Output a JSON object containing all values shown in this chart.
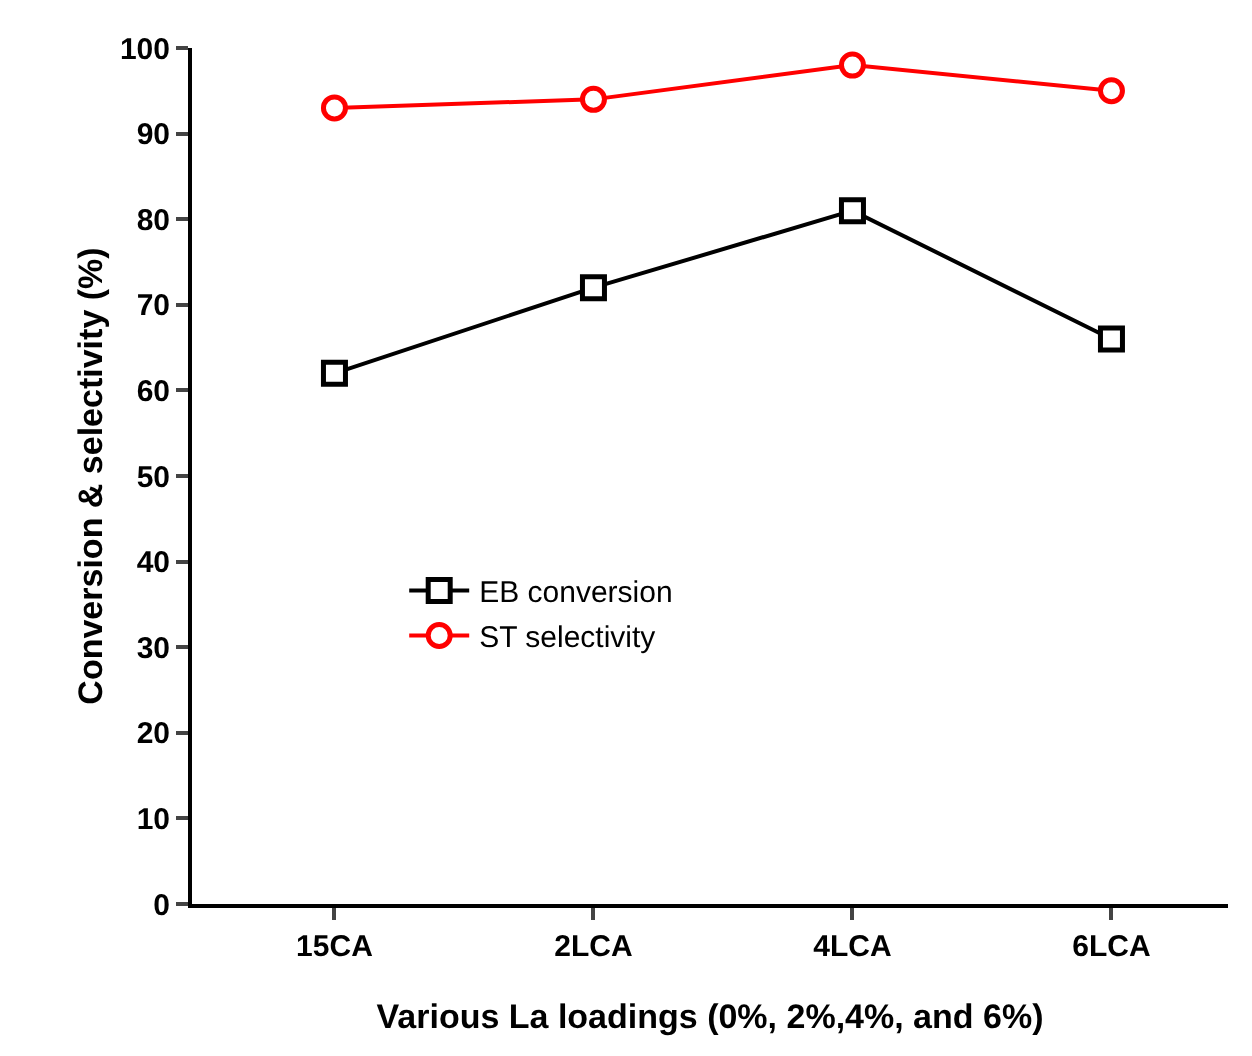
{
  "chart_data": {
    "type": "line",
    "xlabel": "Various La loadings (0%, 2%,4%, and 6%)",
    "ylabel": "Conversion & selectivity (%)",
    "categories": [
      "15CA",
      "2LCA",
      "4LCA",
      "6LCA"
    ],
    "series": [
      {
        "name": "EB conversion",
        "color": "#000000",
        "marker": "square",
        "values": [
          62,
          72,
          81,
          66
        ]
      },
      {
        "name": "ST selectivity",
        "color": "#ff0000",
        "marker": "circle",
        "values": [
          93,
          94,
          98,
          95
        ]
      }
    ],
    "ylim": [
      0,
      100
    ],
    "yticks": [
      0,
      10,
      20,
      30,
      40,
      50,
      60,
      70,
      80,
      90,
      100
    ],
    "grid": false,
    "legend": "center left",
    "line_style": "solid"
  }
}
